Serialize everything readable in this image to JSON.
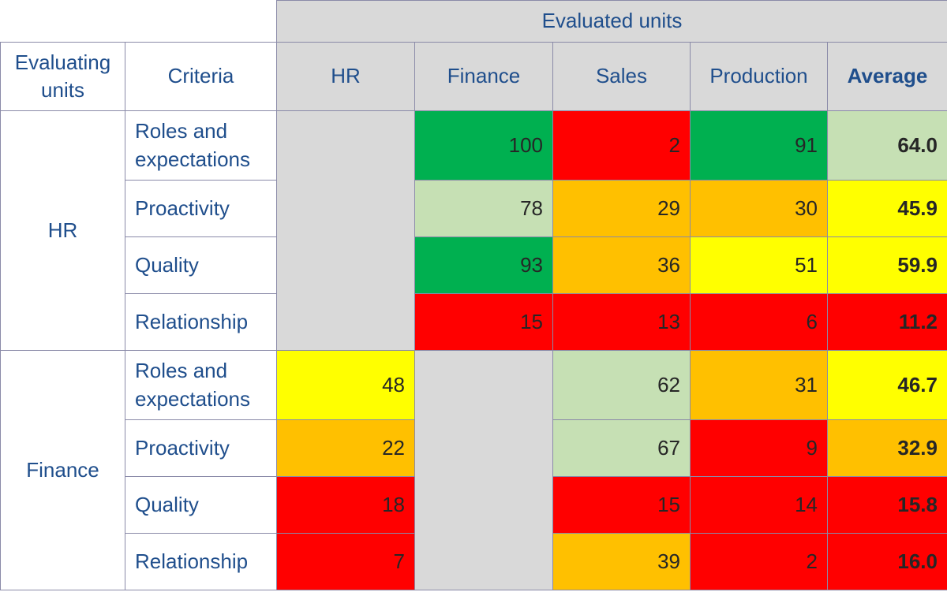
{
  "chart_data": {
    "type": "table",
    "header": {
      "group_label": "Evaluated units",
      "evaluating_label": "Evaluating units",
      "criteria_label": "Criteria",
      "columns": [
        "HR",
        "Finance",
        "Sales",
        "Production",
        "Average"
      ]
    },
    "groups": [
      {
        "name": "HR",
        "rows": [
          {
            "criterion": "Roles and expectations",
            "values": [
              null,
              "100",
              "2",
              "91"
            ],
            "average": "64.0"
          },
          {
            "criterion": "Proactivity",
            "values": [
              null,
              "78",
              "29",
              "30"
            ],
            "average": "45.9"
          },
          {
            "criterion": "Quality",
            "values": [
              null,
              "93",
              "36",
              "51"
            ],
            "average": "59.9"
          },
          {
            "criterion": "Relationship",
            "values": [
              null,
              "15",
              "13",
              "6"
            ],
            "average": "11.2"
          }
        ]
      },
      {
        "name": "Finance",
        "rows": [
          {
            "criterion": "Roles and expectations",
            "values": [
              "48",
              null,
              "62",
              "31"
            ],
            "average": "46.7"
          },
          {
            "criterion": "Proactivity",
            "values": [
              "22",
              null,
              "67",
              "9"
            ],
            "average": "32.9"
          },
          {
            "criterion": "Quality",
            "values": [
              "18",
              null,
              "15",
              "14"
            ],
            "average": "15.8"
          },
          {
            "criterion": "Relationship",
            "values": [
              "7",
              null,
              "39",
              "2"
            ],
            "average": "16.0"
          }
        ]
      }
    ],
    "color_scale": [
      {
        "min": 80,
        "color": "#00b050"
      },
      {
        "min": 60,
        "color": "#c6e0b4"
      },
      {
        "min": 45,
        "color": "#ffff00"
      },
      {
        "min": 20,
        "color": "#ffc000"
      },
      {
        "min": 0,
        "color": "#ff0000"
      }
    ],
    "self_evaluation_color": "#d9d9d9"
  }
}
